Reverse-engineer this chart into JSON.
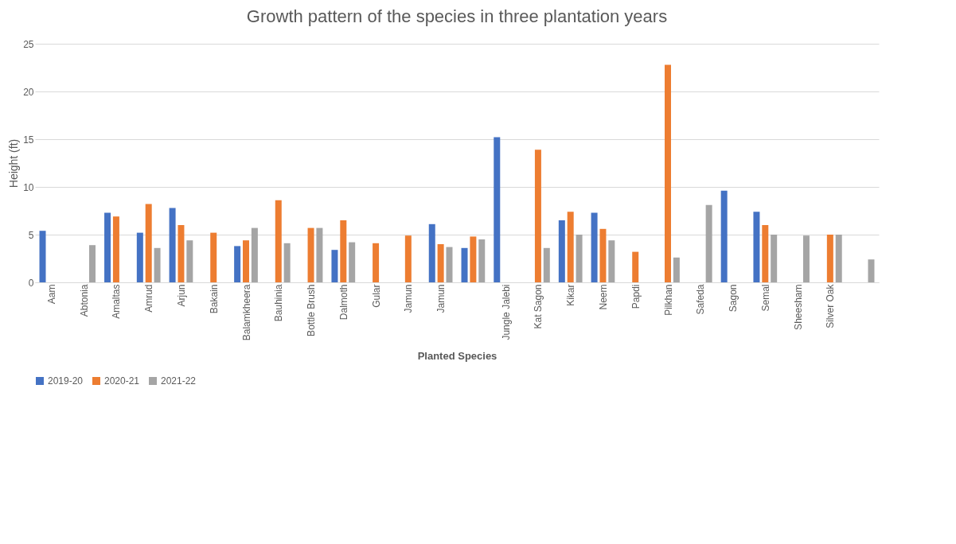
{
  "chart_data": {
    "type": "bar",
    "title": "Growth pattern of the species in three plantation years",
    "xlabel": "Planted Species",
    "ylabel": "Height (ft)",
    "categories": [
      "Aam",
      "Abtonia",
      "Amaltas",
      "Amrud",
      "Arjun",
      "Bakain",
      "Balamkheera",
      "Bauhinia",
      "Bottle Brush",
      "Dalmoth",
      "Gular",
      "Jamun",
      "Jamun",
      null,
      "Jungle Jalebi",
      "Kat Sagon",
      "Kikar",
      "Neem",
      "Papdi",
      "Pilkhan",
      "Safeda",
      "Sagon",
      "Semal",
      "Sheesham",
      "Silver Oak",
      null
    ],
    "series": [
      {
        "name": "2019-20",
        "color": "#4472c4",
        "values": [
          5.4,
          null,
          7.3,
          5.2,
          7.8,
          null,
          3.8,
          null,
          null,
          3.4,
          null,
          null,
          6.1,
          3.6,
          15.2,
          null,
          6.5,
          7.3,
          null,
          null,
          null,
          9.6,
          7.4,
          null,
          null,
          null
        ]
      },
      {
        "name": "2020-21",
        "color": "#ed7d31",
        "values": [
          null,
          null,
          6.9,
          8.2,
          6.0,
          5.2,
          4.4,
          8.6,
          5.7,
          6.5,
          4.1,
          4.9,
          4.0,
          4.8,
          null,
          13.9,
          7.4,
          5.6,
          3.2,
          22.8,
          null,
          null,
          6.0,
          null,
          5.0,
          null
        ]
      },
      {
        "name": "2021-22",
        "color": "#a5a5a5",
        "values": [
          null,
          3.9,
          null,
          3.6,
          4.4,
          null,
          5.7,
          4.1,
          5.7,
          4.2,
          null,
          null,
          3.7,
          4.5,
          null,
          3.6,
          5.0,
          4.4,
          null,
          2.6,
          8.1,
          null,
          5.0,
          4.9,
          5.0,
          2.4
        ]
      }
    ],
    "ylim": [
      0,
      25
    ],
    "yticks": [
      0,
      5,
      10,
      15,
      20,
      25
    ],
    "grid": "y",
    "legend": "bottom"
  }
}
